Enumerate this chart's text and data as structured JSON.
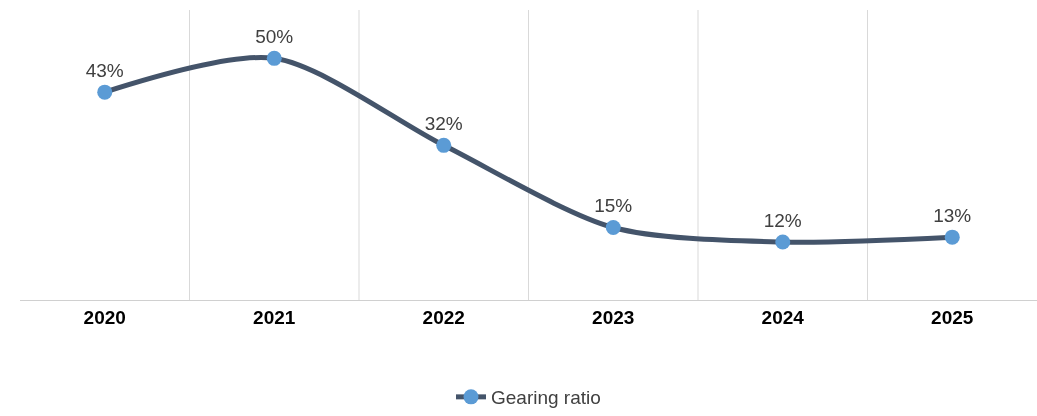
{
  "chart_data": {
    "type": "line",
    "categories": [
      "2020",
      "2021",
      "2022",
      "2023",
      "2024",
      "2025"
    ],
    "series": [
      {
        "name": "Gearing ratio",
        "color": "#44546a",
        "colors": [
          "#5b9bd5",
          "#5b9bd5",
          "#5b9bd5",
          "#5b9bd5",
          "#5b9bd5",
          "#5b9bd5"
        ],
        "values": [
          43,
          50,
          32,
          15,
          12,
          13
        ],
        "value_labels": [
          "43%",
          "50%",
          "32%",
          "15%",
          "12%",
          "13%"
        ]
      }
    ],
    "ylim": [
      0,
      60
    ],
    "tick_labels": "x",
    "grid": "x",
    "legend": "bottom",
    "marker": "circle",
    "line_style": "solid"
  }
}
